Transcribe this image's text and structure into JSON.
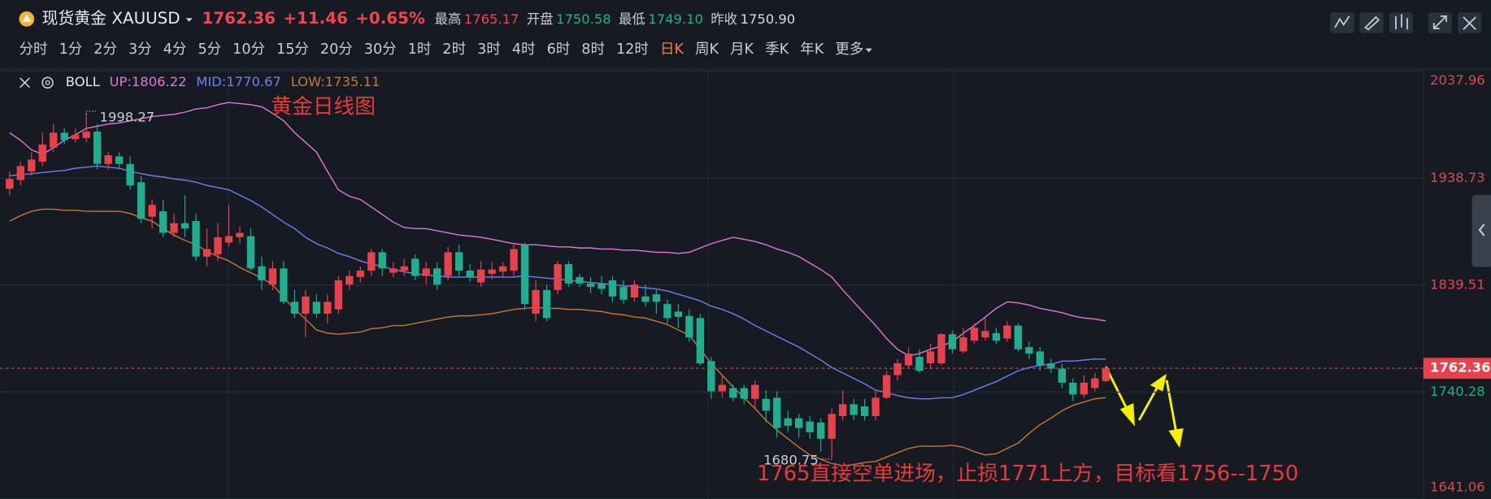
{
  "header": {
    "symbol": "现货黄金 XAUUSD",
    "price": "1762.36",
    "change": "+11.46",
    "change_pct": "+0.65%",
    "quote_color": "#f0474f",
    "stats": [
      {
        "label": "最高",
        "value": "1765.17",
        "color": "#f0474f"
      },
      {
        "label": "开盘",
        "value": "1750.58",
        "color": "#22b08c"
      },
      {
        "label": "最低",
        "value": "1749.10",
        "color": "#22b08c"
      },
      {
        "label": "昨收",
        "value": "1750.90",
        "color": "#d8dbe0"
      }
    ]
  },
  "toolbar": {
    "timeframes": [
      {
        "label": "分时"
      },
      {
        "label": "1分"
      },
      {
        "label": "2分"
      },
      {
        "label": "3分"
      },
      {
        "label": "4分"
      },
      {
        "label": "5分"
      },
      {
        "label": "10分"
      },
      {
        "label": "15分"
      },
      {
        "label": "20分"
      },
      {
        "label": "30分"
      },
      {
        "label": "1时"
      },
      {
        "label": "2时"
      },
      {
        "label": "3时"
      },
      {
        "label": "4时"
      },
      {
        "label": "6时"
      },
      {
        "label": "8时"
      },
      {
        "label": "12时"
      },
      {
        "label": "日K",
        "selected": true
      },
      {
        "label": "周K"
      },
      {
        "label": "月K"
      },
      {
        "label": "季K"
      },
      {
        "label": "年K"
      },
      {
        "label": "更多"
      }
    ]
  },
  "chart_data": {
    "type": "candlestick",
    "indicator": "BOLL",
    "annotations": [
      "黄金日线图",
      "1765直接空单进场，止损1771上方，目标看1756--1750"
    ],
    "up_color": "#e8414b",
    "down_color": "#1fae8f",
    "candles": {
      "open": [
        1929,
        1937,
        1945,
        1954,
        1967,
        1981,
        1975,
        1976,
        1982,
        1952,
        1959,
        1952,
        1935,
        1903,
        1908,
        1888,
        1897,
        1899,
        1866,
        1868,
        1879,
        1884,
        1885,
        1857,
        1840,
        1855,
        1824,
        1813,
        1824,
        1813,
        1817,
        1840,
        1847,
        1853,
        1870,
        1851,
        1853,
        1864,
        1848,
        1855,
        1848,
        1870,
        1853,
        1842,
        1850,
        1852,
        1853,
        1877,
        1813,
        1835,
        1835,
        1859,
        1847,
        1841,
        1841,
        1844,
        1838,
        1828,
        1829,
        1831,
        1822,
        1815,
        1811,
        1809,
        1769,
        1741,
        1744,
        1744,
        1734,
        1734,
        1735,
        1716,
        1716,
        1713,
        1712,
        1697,
        1718,
        1729,
        1727,
        1718,
        1735,
        1756,
        1765,
        1773,
        1767,
        1767,
        1794,
        1778,
        1788,
        1791,
        1795,
        1790,
        1802,
        1782,
        1778,
        1767,
        1762,
        1749,
        1738,
        1744,
        1750.58
      ],
      "high": [
        1945,
        1954,
        1963,
        1981,
        1989,
        1985,
        1985,
        1998.27,
        1989,
        1963,
        1963,
        1959,
        1941,
        1919,
        1919,
        1906,
        1923,
        1906,
        1892,
        1897,
        1914,
        1894,
        1892,
        1866,
        1862,
        1862,
        1835,
        1835,
        1831,
        1831,
        1848,
        1853,
        1857,
        1873,
        1873,
        1861,
        1864,
        1868,
        1861,
        1861,
        1875,
        1877,
        1859,
        1862,
        1861,
        1861,
        1877,
        1879,
        1844,
        1840,
        1862,
        1862,
        1850,
        1847,
        1848,
        1848,
        1844,
        1844,
        1840,
        1835,
        1826,
        1822,
        1817,
        1813,
        1773,
        1756,
        1747,
        1747,
        1751,
        1742,
        1741,
        1723,
        1720,
        1718,
        1716,
        1725,
        1742,
        1734,
        1734,
        1742,
        1760,
        1771,
        1782,
        1780,
        1785,
        1795,
        1797,
        1800,
        1804,
        1809,
        1800,
        1806,
        1804,
        1787,
        1782,
        1771,
        1767,
        1753,
        1756,
        1758,
        1765.17
      ],
      "low": [
        1923,
        1932,
        1941,
        1950,
        1963,
        1970,
        1972,
        1972,
        1947,
        1947,
        1947,
        1928,
        1897,
        1892,
        1884,
        1884,
        1884,
        1862,
        1857,
        1862,
        1875,
        1878,
        1853,
        1835,
        1835,
        1822,
        1809,
        1791,
        1809,
        1804,
        1813,
        1835,
        1842,
        1848,
        1848,
        1847,
        1848,
        1844,
        1840,
        1835,
        1844,
        1848,
        1843,
        1838,
        1845,
        1847,
        1848,
        1817,
        1806,
        1806,
        1831,
        1838,
        1838,
        1832,
        1831,
        1824,
        1822,
        1824,
        1820,
        1813,
        1804,
        1800,
        1787,
        1765,
        1734,
        1735,
        1732,
        1729,
        1725,
        1712,
        1698,
        1703,
        1698,
        1697,
        1685,
        1680.75,
        1714,
        1714,
        1714,
        1714,
        1734,
        1751,
        1762,
        1758,
        1762,
        1765,
        1776,
        1776,
        1785,
        1788,
        1785,
        1787,
        1778,
        1771,
        1760,
        1758,
        1744,
        1732,
        1735,
        1741,
        1749.1
      ],
      "close": [
        1938,
        1950,
        1956,
        1970,
        1981,
        1974,
        1979,
        1982,
        1952,
        1960,
        1952,
        1932,
        1901,
        1914,
        1888,
        1897,
        1892,
        1866,
        1873,
        1884,
        1885,
        1888,
        1855,
        1844,
        1855,
        1824,
        1813,
        1829,
        1813,
        1824,
        1844,
        1848,
        1853,
        1870,
        1855,
        1855,
        1857,
        1848,
        1855,
        1840,
        1870,
        1853,
        1847,
        1854,
        1854,
        1857,
        1873,
        1822,
        1835,
        1809,
        1859,
        1841,
        1841,
        1838,
        1836,
        1829,
        1826,
        1840,
        1824,
        1824,
        1809,
        1810,
        1791,
        1767,
        1741,
        1747,
        1735,
        1734,
        1747,
        1723,
        1707,
        1709,
        1707,
        1703,
        1697,
        1720,
        1729,
        1719,
        1718,
        1735,
        1756,
        1767,
        1776,
        1760,
        1778,
        1794,
        1780,
        1791,
        1800,
        1797,
        1788,
        1802,
        1780,
        1776,
        1765,
        1762,
        1749,
        1738,
        1749,
        1753,
        1762.36
      ]
    },
    "series": [
      {
        "name": "UP:1806.22",
        "color": "#e377d9",
        "values": [
          1981,
          1974,
          1965,
          1961,
          1967,
          1974,
          1979,
          1985,
          1987,
          1989,
          1990,
          1992,
          1994,
          1996,
          1997,
          1998,
          2000,
          2003,
          2004,
          2007,
          2009,
          2008,
          2007,
          2005,
          1999,
          1992,
          1981,
          1972,
          1963,
          1945,
          1928,
          1922,
          1919,
          1912,
          1905,
          1898,
          1893,
          1892,
          1892,
          1890,
          1888,
          1886,
          1885,
          1884,
          1882,
          1880,
          1878,
          1877,
          1877,
          1876,
          1875,
          1875,
          1874,
          1874,
          1873,
          1873,
          1872,
          1872,
          1871,
          1870,
          1870,
          1869,
          1870,
          1874,
          1878,
          1881,
          1884,
          1882,
          1880,
          1877,
          1873,
          1870,
          1866,
          1860,
          1854,
          1847,
          1835,
          1824,
          1813,
          1802,
          1790,
          1780,
          1774,
          1776,
          1780,
          1783,
          1787,
          1795,
          1802,
          1810,
          1818,
          1824,
          1823,
          1821,
          1818,
          1816,
          1814,
          1811,
          1809,
          1808,
          1806.22
        ]
      },
      {
        "name": "MID:1770.67",
        "color": "#6f7ff2",
        "values": [
          1941,
          1942,
          1943,
          1944,
          1945,
          1946,
          1948,
          1949,
          1950,
          1949,
          1948,
          1945,
          1943,
          1941,
          1940,
          1938,
          1937,
          1935,
          1932,
          1930,
          1928,
          1923,
          1918,
          1912,
          1905,
          1898,
          1892,
          1884,
          1878,
          1874,
          1869,
          1866,
          1862,
          1859,
          1857,
          1854,
          1852,
          1850,
          1849,
          1848,
          1847,
          1847,
          1847,
          1847,
          1847,
          1847,
          1847,
          1848,
          1847,
          1846,
          1845,
          1844,
          1843,
          1842,
          1841,
          1840,
          1839,
          1838,
          1837,
          1836,
          1834,
          1831,
          1828,
          1825,
          1820,
          1817,
          1813,
          1808,
          1802,
          1797,
          1792,
          1787,
          1782,
          1776,
          1770,
          1763,
          1758,
          1753,
          1748,
          1742,
          1740,
          1737,
          1735,
          1734,
          1734,
          1735,
          1735,
          1738,
          1742,
          1746,
          1750,
          1755,
          1760,
          1763,
          1765,
          1766,
          1769,
          1769,
          1770,
          1771,
          1770.67
        ]
      },
      {
        "name": "LOW:1735.11",
        "color": "#c47a35",
        "values": [
          1899,
          1904,
          1908,
          1910,
          1910,
          1909,
          1909,
          1908,
          1908,
          1908,
          1908,
          1906,
          1902,
          1899,
          1892,
          1886,
          1881,
          1877,
          1871,
          1866,
          1862,
          1856,
          1851,
          1846,
          1840,
          1828,
          1817,
          1808,
          1798,
          1795,
          1794,
          1795,
          1796,
          1799,
          1800,
          1802,
          1802,
          1804,
          1806,
          1808,
          1810,
          1811,
          1811,
          1812,
          1813,
          1815,
          1817,
          1818,
          1819,
          1818,
          1818,
          1817,
          1817,
          1816,
          1815,
          1813,
          1812,
          1810,
          1809,
          1806,
          1803,
          1798,
          1793,
          1780,
          1767,
          1756,
          1745,
          1735,
          1725,
          1714,
          1705,
          1697,
          1689,
          1682,
          1678,
          1674,
          1672,
          1673,
          1675,
          1676,
          1680,
          1684,
          1688,
          1690,
          1690,
          1690,
          1691,
          1689,
          1685,
          1682,
          1683,
          1688,
          1693,
          1702,
          1710,
          1716,
          1723,
          1728,
          1731,
          1734,
          1735.11
        ]
      }
    ],
    "ylim": [
      1641.06,
      2037.96
    ],
    "yticks": [
      2037.96,
      1938.73,
      1839.51,
      1740.28,
      1641.06
    ],
    "ytick_colors": [
      "#e0474c",
      "#e0474c",
      "#e0474c",
      "#1fae8f",
      "#e0474c"
    ],
    "grid": true,
    "last_price": 1762.36,
    "high_label": 1998.27,
    "low_label": 1680.75
  }
}
